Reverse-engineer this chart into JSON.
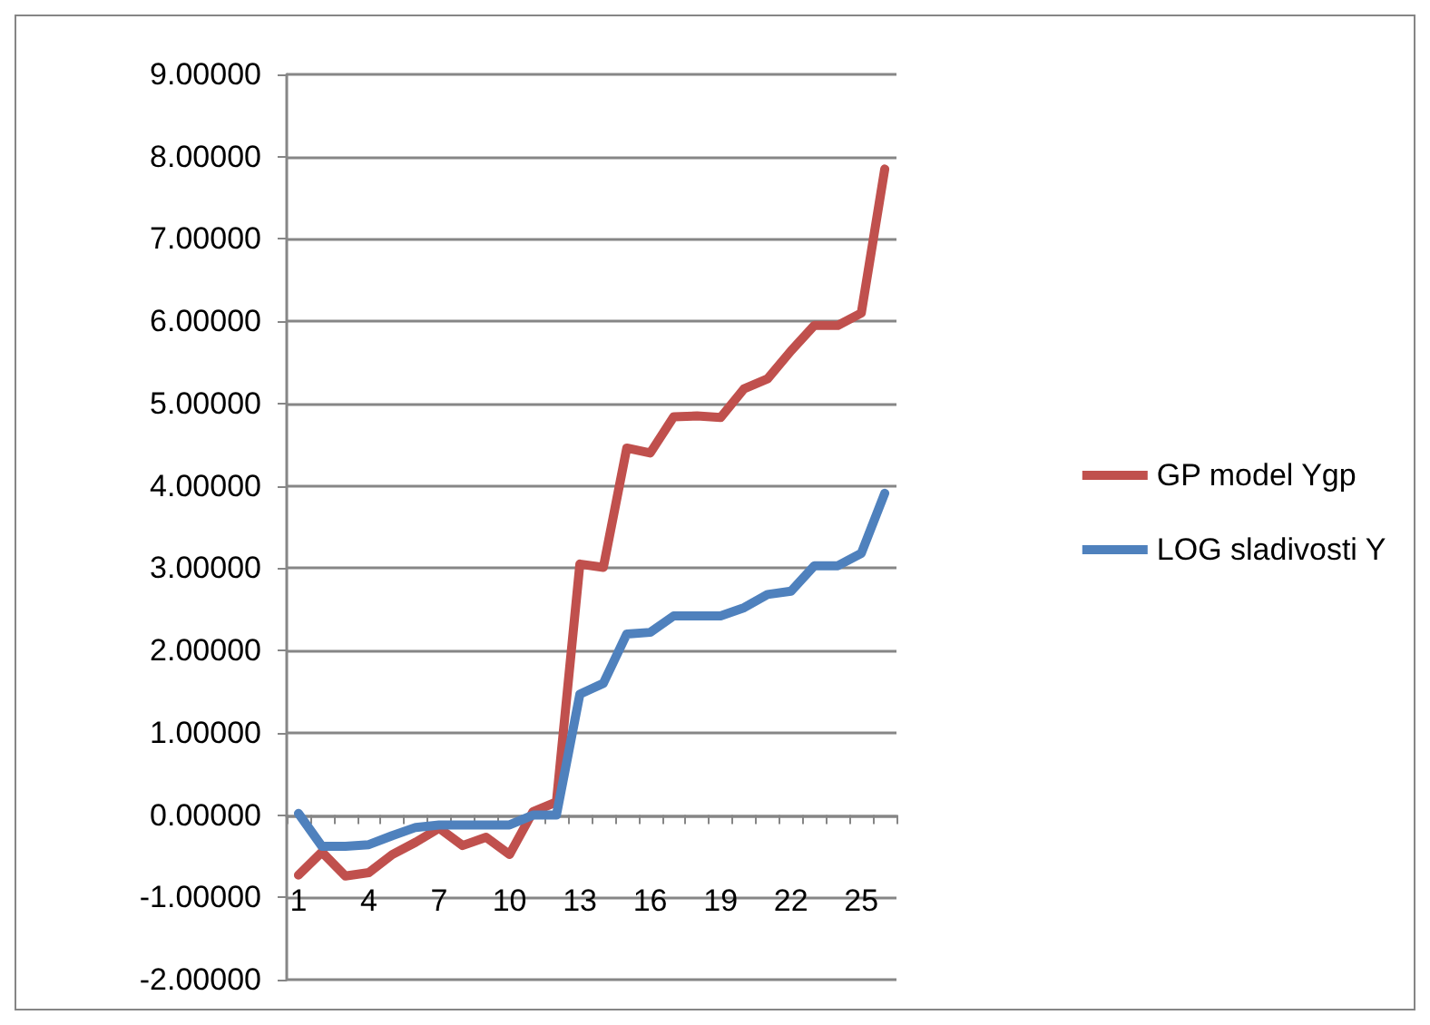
{
  "chart_data": {
    "type": "line",
    "categories": [
      "1",
      null,
      null,
      "4",
      null,
      null,
      "7",
      null,
      null,
      "10",
      null,
      null,
      "13",
      null,
      null,
      "16",
      null,
      null,
      "19",
      null,
      null,
      "22",
      null,
      null,
      "25",
      null
    ],
    "series": [
      {
        "name": "GP model Ygp",
        "color": "#c0504d",
        "values": [
          -0.73,
          -0.45,
          -0.74,
          -0.7,
          -0.48,
          -0.33,
          -0.16,
          -0.37,
          -0.27,
          -0.48,
          0.04,
          0.16,
          3.05,
          3.01,
          4.46,
          4.4,
          4.84,
          4.85,
          4.83,
          5.18,
          5.3,
          5.64,
          5.95,
          5.95,
          6.1,
          7.85
        ]
      },
      {
        "name": "LOG sladivosti Y",
        "color": "#4f81bd",
        "values": [
          0.02,
          -0.38,
          -0.38,
          -0.36,
          -0.25,
          -0.15,
          -0.12,
          -0.12,
          -0.12,
          -0.12,
          0,
          0,
          1.47,
          1.6,
          2.2,
          2.22,
          2.42,
          2.42,
          2.42,
          2.52,
          2.68,
          2.72,
          3.03,
          3.03,
          3.18,
          3.91
        ]
      }
    ],
    "ylim": [
      -2,
      9
    ],
    "yticks": [
      {
        "value": -2,
        "label": "-2.00000"
      },
      {
        "value": -1,
        "label": "-1.00000"
      },
      {
        "value": 0,
        "label": "0.00000"
      },
      {
        "value": 1,
        "label": "1.00000"
      },
      {
        "value": 2,
        "label": "2.00000"
      },
      {
        "value": 3,
        "label": "3.00000"
      },
      {
        "value": 4,
        "label": "4.00000"
      },
      {
        "value": 5,
        "label": "5.00000"
      },
      {
        "value": 6,
        "label": "6.00000"
      },
      {
        "value": 7,
        "label": "7.00000"
      },
      {
        "value": 8,
        "label": "8.00000"
      },
      {
        "value": 9,
        "label": "9.00000"
      }
    ],
    "grid": "y",
    "legend": "right",
    "marker": "none",
    "line_style": "solid"
  }
}
